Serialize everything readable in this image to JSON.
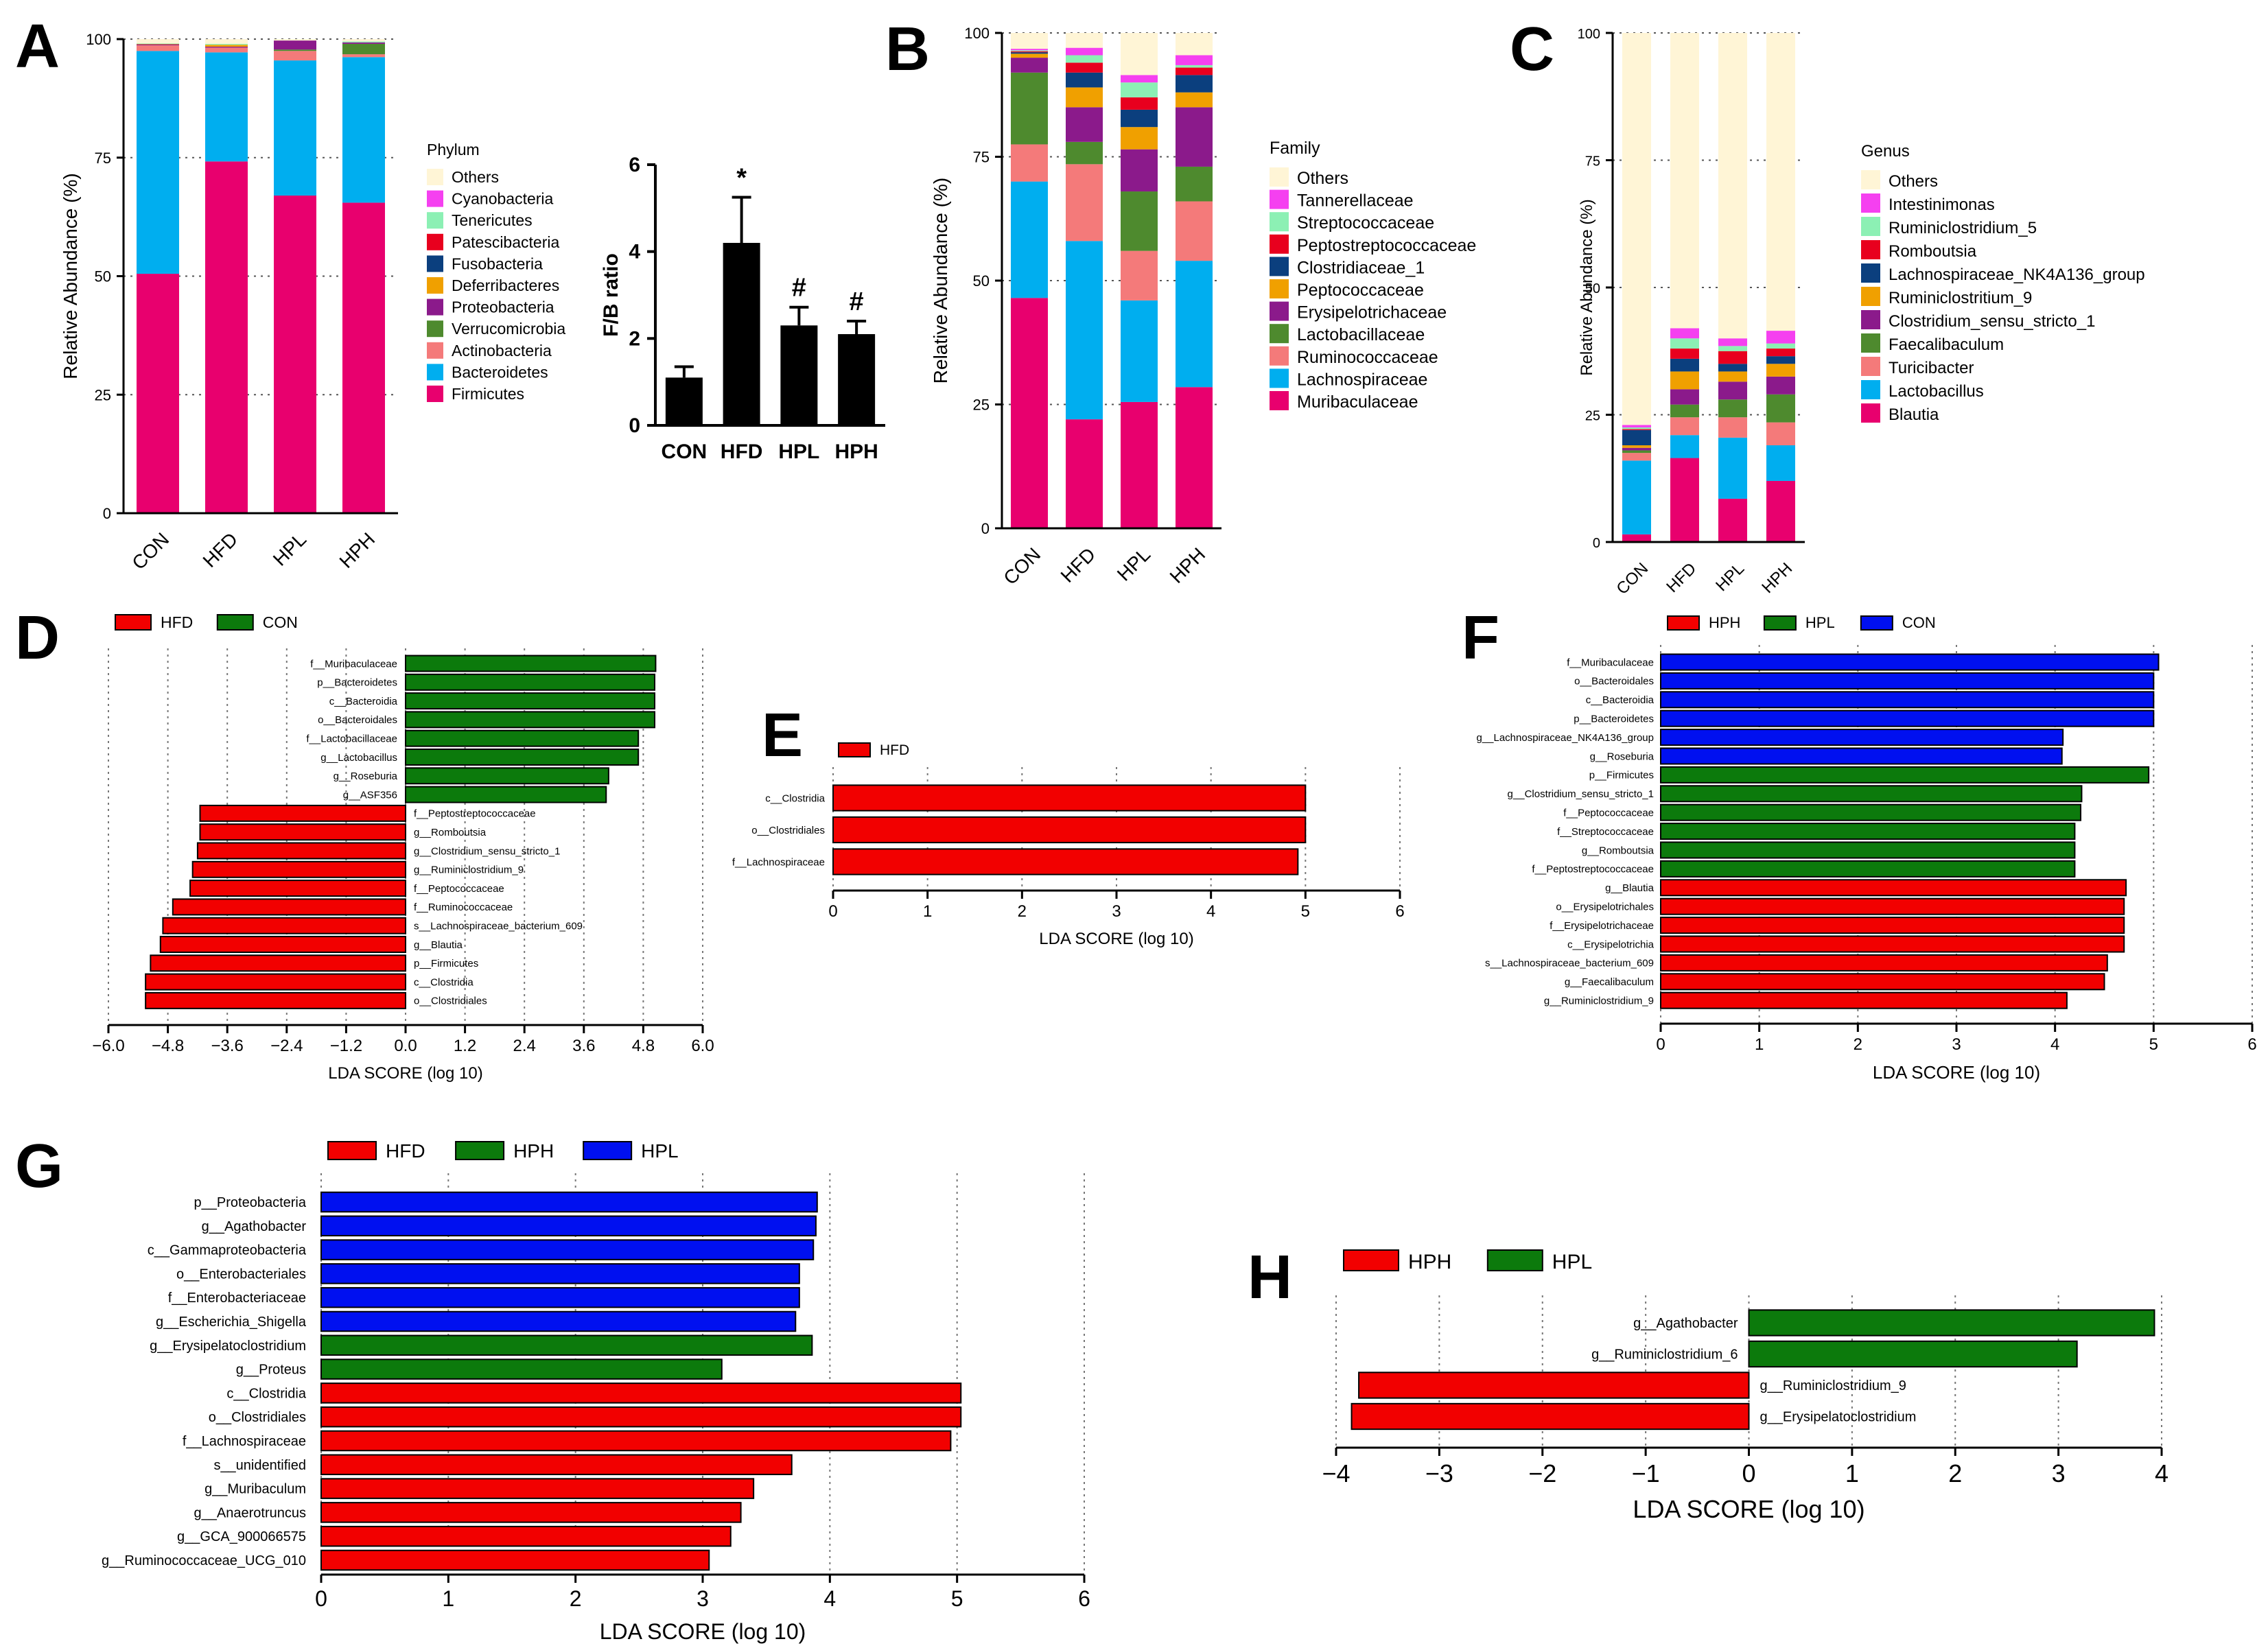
{
  "chart_data": [
    {
      "panel": "A",
      "type": "bar",
      "stacked": true,
      "ylabel": "Relative Abundance (%)",
      "ylim": [
        0,
        100
      ],
      "yticks": [
        0,
        25,
        50,
        75,
        100
      ],
      "categories": [
        "CON",
        "HFD",
        "HPL",
        "HPH"
      ],
      "legend_title": "Phylum",
      "series": [
        {
          "name": "Firmicutes",
          "color": "#E8006E",
          "values": [
            50.5,
            74.2,
            67,
            65.5
          ]
        },
        {
          "name": "Bacteroidetes",
          "color": "#00AEEF",
          "values": [
            47,
            23,
            28.5,
            30.7
          ]
        },
        {
          "name": "Actinobacteria",
          "color": "#F47A7A",
          "values": [
            1.2,
            1,
            2,
            0.6
          ]
        },
        {
          "name": "Verrucomicrobia",
          "color": "#4E8A2E",
          "values": [
            0,
            0,
            0.3,
            2.2
          ]
        },
        {
          "name": "Proteobacteria",
          "color": "#8B1A8B",
          "values": [
            0.2,
            0.2,
            1.9,
            0.3
          ]
        },
        {
          "name": "Deferribacteres",
          "color": "#F0A000",
          "values": [
            0.1,
            0.4,
            0,
            0
          ]
        },
        {
          "name": "Fusobacteria",
          "color": "#0B3F7E",
          "values": [
            0,
            0,
            0,
            0
          ]
        },
        {
          "name": "Patescibacteria",
          "color": "#E8001E",
          "values": [
            0,
            0,
            0,
            0
          ]
        },
        {
          "name": "Tenericutes",
          "color": "#8CF0B4",
          "values": [
            0.1,
            0.2,
            0,
            0.2
          ]
        },
        {
          "name": "Cyanobacteria",
          "color": "#F540F0",
          "values": [
            0,
            0,
            0,
            0
          ]
        },
        {
          "name": "Others",
          "color": "#FFF5D6",
          "values": [
            0.9,
            1,
            0.3,
            0.5
          ]
        }
      ]
    },
    {
      "panel": "A",
      "type": "bar",
      "ylabel": "F/B ratio",
      "ylim": [
        0,
        6
      ],
      "yticks": [
        0,
        2,
        4,
        6
      ],
      "categories": [
        "CON",
        "HFD",
        "HPL",
        "HPH"
      ],
      "values": [
        1.1,
        4.2,
        2.3,
        2.1
      ],
      "errors": [
        0.25,
        1.05,
        0.42,
        0.3
      ],
      "annotations": [
        "",
        "*",
        "#",
        "#"
      ]
    },
    {
      "panel": "B",
      "type": "bar",
      "stacked": true,
      "ylabel": "Relative Abundance (%)",
      "ylim": [
        0,
        100
      ],
      "yticks": [
        0,
        25,
        50,
        75,
        100
      ],
      "categories": [
        "CON",
        "HFD",
        "HPL",
        "HPH"
      ],
      "legend_title": "Family",
      "series": [
        {
          "name": "Muribaculaceae",
          "color": "#E8006E",
          "values": [
            46.5,
            22,
            25.5,
            28.5
          ]
        },
        {
          "name": "Lachnospiraceae",
          "color": "#00AEEF",
          "values": [
            23.5,
            36,
            20.5,
            25.5
          ]
        },
        {
          "name": "Ruminococcaceae",
          "color": "#F47A7A",
          "values": [
            7.5,
            15.5,
            10,
            12
          ]
        },
        {
          "name": "Lactobacillaceae",
          "color": "#4E8A2E",
          "values": [
            14.5,
            4.5,
            12,
            7
          ]
        },
        {
          "name": "Erysipelotrichaceae",
          "color": "#8B1A8B",
          "values": [
            3,
            7,
            8.5,
            12
          ]
        },
        {
          "name": "Peptococcaceae",
          "color": "#F0A000",
          "values": [
            0.8,
            4,
            4.5,
            3
          ]
        },
        {
          "name": "Clostridiaceae_1",
          "color": "#0B3F7E",
          "values": [
            0.3,
            3,
            3.5,
            3.5
          ]
        },
        {
          "name": "Peptostreptococcaceae",
          "color": "#E8001E",
          "values": [
            0.2,
            2,
            2.5,
            1.5
          ]
        },
        {
          "name": "Streptococcaceae",
          "color": "#8CF0B4",
          "values": [
            0.2,
            1.5,
            3,
            0.5
          ]
        },
        {
          "name": "Tannerellaceae",
          "color": "#F540F0",
          "values": [
            0.3,
            1.5,
            1.5,
            2
          ]
        },
        {
          "name": "Others",
          "color": "#FFF5D6",
          "values": [
            3.2,
            3,
            8.5,
            4.5
          ]
        }
      ]
    },
    {
      "panel": "C",
      "type": "bar",
      "stacked": true,
      "ylabel": "Relative Abundance (%)",
      "ylim": [
        0,
        100
      ],
      "yticks": [
        0,
        25,
        50,
        75,
        100
      ],
      "categories": [
        "CON",
        "HFD",
        "HPL",
        "HPH"
      ],
      "legend_title": "Genus",
      "series": [
        {
          "name": "Blautia",
          "color": "#E8006E",
          "values": [
            1.5,
            16.5,
            8.5,
            12
          ]
        },
        {
          "name": "Lactobacillus",
          "color": "#00AEEF",
          "values": [
            14.5,
            4.5,
            12,
            7
          ]
        },
        {
          "name": "Turicibacter",
          "color": "#F47A7A",
          "values": [
            1.5,
            3.5,
            4,
            4.5
          ]
        },
        {
          "name": "Faecalibaculum",
          "color": "#4E8A2E",
          "values": [
            0.5,
            2.5,
            3.5,
            5.5
          ]
        },
        {
          "name": "Clostridium_sensu_stricto_1",
          "color": "#8B1A8B",
          "values": [
            0.5,
            3,
            3.5,
            3.5
          ]
        },
        {
          "name": "Ruminiclostritium_9",
          "color": "#F0A000",
          "values": [
            0.5,
            3.5,
            2,
            2.5
          ]
        },
        {
          "name": "Lachnospiraceae_NK4A136_group",
          "color": "#0B3F7E",
          "values": [
            3,
            2.5,
            1.5,
            1.5
          ]
        },
        {
          "name": "Romboutsia",
          "color": "#E8001E",
          "values": [
            0.2,
            2,
            2.5,
            1.5
          ]
        },
        {
          "name": "Ruminiclostridium_5",
          "color": "#8CF0B4",
          "values": [
            0.3,
            2,
            1,
            1
          ]
        },
        {
          "name": "Intestinimonas",
          "color": "#F540F0",
          "values": [
            0.5,
            2,
            1.5,
            2.5
          ]
        },
        {
          "name": "Others",
          "color": "#FFF5D6",
          "values": [
            77,
            58,
            60,
            58.5
          ]
        }
      ]
    },
    {
      "panel": "D",
      "type": "bar",
      "orientation": "horizontal",
      "xlabel": "LDA SCORE (log 10)",
      "xlim": [
        -6,
        6
      ],
      "xticks": [
        -6,
        -4.8,
        -3.6,
        -2.4,
        -1.2,
        0,
        1.2,
        2.4,
        3.6,
        4.8,
        6
      ],
      "xtick_labels": [
        "−6.0",
        "−4.8",
        "−3.6",
        "−2.4",
        "−1.2",
        "0.0",
        "1.2",
        "2.4",
        "3.6",
        "4.8",
        "6.0"
      ],
      "legend": [
        {
          "name": "HFD",
          "color": "#F20000"
        },
        {
          "name": "CON",
          "color": "#0C7A0C"
        }
      ],
      "bars": [
        {
          "label": "f__Muribaculaceae",
          "value": 5.05,
          "group": "CON"
        },
        {
          "label": "p__Bacteroidetes",
          "value": 5.03,
          "group": "CON"
        },
        {
          "label": "c__Bacteroidia",
          "value": 5.03,
          "group": "CON"
        },
        {
          "label": "o__Bacteroidales",
          "value": 5.03,
          "group": "CON"
        },
        {
          "label": "f__Lactobacillaceae",
          "value": 4.7,
          "group": "CON"
        },
        {
          "label": "g__Lactobacillus",
          "value": 4.7,
          "group": "CON"
        },
        {
          "label": "g__Roseburia",
          "value": 4.1,
          "group": "CON"
        },
        {
          "label": "g__ASF356",
          "value": 4.05,
          "group": "CON"
        },
        {
          "label": "f__Peptostreptococcaceae",
          "value": -4.15,
          "group": "HFD"
        },
        {
          "label": "g__Romboutsia",
          "value": -4.15,
          "group": "HFD"
        },
        {
          "label": "g__Clostridium_sensu_stricto_1",
          "value": -4.2,
          "group": "HFD"
        },
        {
          "label": "g__Ruminiclostridium_9",
          "value": -4.3,
          "group": "HFD"
        },
        {
          "label": "f__Peptococcaceae",
          "value": -4.35,
          "group": "HFD"
        },
        {
          "label": "f__Ruminococcaceae",
          "value": -4.7,
          "group": "HFD"
        },
        {
          "label": "s__Lachnospiraceae_bacterium_609",
          "value": -4.9,
          "group": "HFD"
        },
        {
          "label": "g__Blautia",
          "value": -4.95,
          "group": "HFD"
        },
        {
          "label": "p__Firmicutes",
          "value": -5.15,
          "group": "HFD"
        },
        {
          "label": "c__Clostridia",
          "value": -5.25,
          "group": "HFD"
        },
        {
          "label": "o__Clostridiales",
          "value": -5.25,
          "group": "HFD"
        }
      ]
    },
    {
      "panel": "E",
      "type": "bar",
      "orientation": "horizontal",
      "xlabel": "LDA SCORE (log 10)",
      "xlim": [
        0,
        6
      ],
      "xticks": [
        0,
        1,
        2,
        3,
        4,
        5,
        6
      ],
      "legend": [
        {
          "name": "HFD",
          "color": "#F20000"
        }
      ],
      "bars": [
        {
          "label": "c__Clostridia",
          "value": 5.0,
          "group": "HFD"
        },
        {
          "label": "o__Clostridiales",
          "value": 5.0,
          "group": "HFD"
        },
        {
          "label": "f__Lachnospiraceae",
          "value": 4.92,
          "group": "HFD"
        }
      ]
    },
    {
      "panel": "F",
      "type": "bar",
      "orientation": "horizontal",
      "xlabel": "LDA SCORE (log 10)",
      "xlim": [
        0,
        6
      ],
      "xticks": [
        0,
        1,
        2,
        3,
        4,
        5,
        6
      ],
      "legend": [
        {
          "name": "HPH",
          "color": "#F20000"
        },
        {
          "name": "HPL",
          "color": "#0C7A0C"
        },
        {
          "name": "CON",
          "color": "#0010F0"
        }
      ],
      "bars": [
        {
          "label": "f__Muribaculaceae",
          "value": 5.05,
          "group": "CON"
        },
        {
          "label": "o__Bacteroidales",
          "value": 5.0,
          "group": "CON"
        },
        {
          "label": "c__Bacteroidia",
          "value": 5.0,
          "group": "CON"
        },
        {
          "label": "p__Bacteroidetes",
          "value": 5.0,
          "group": "CON"
        },
        {
          "label": "g__Lachnospiraceae_NK4A136_group",
          "value": 4.08,
          "group": "CON"
        },
        {
          "label": "g__Roseburia",
          "value": 4.07,
          "group": "CON"
        },
        {
          "label": "p__Firmicutes",
          "value": 4.95,
          "group": "HPL"
        },
        {
          "label": "g__Clostridium_sensu_stricto_1",
          "value": 4.27,
          "group": "HPL"
        },
        {
          "label": "f__Peptococcaceae",
          "value": 4.26,
          "group": "HPL"
        },
        {
          "label": "f__Streptococcaceae",
          "value": 4.2,
          "group": "HPL"
        },
        {
          "label": "g__Romboutsia",
          "value": 4.2,
          "group": "HPL"
        },
        {
          "label": "f__Peptostreptococcaceae",
          "value": 4.2,
          "group": "HPL"
        },
        {
          "label": "g__Blautia",
          "value": 4.72,
          "group": "HPH"
        },
        {
          "label": "o__Erysipelotrichales",
          "value": 4.7,
          "group": "HPH"
        },
        {
          "label": "f__Erysipelotrichaceae",
          "value": 4.7,
          "group": "HPH"
        },
        {
          "label": "c__Erysipelotrichia",
          "value": 4.7,
          "group": "HPH"
        },
        {
          "label": "s__Lachnospiraceae_bacterium_609",
          "value": 4.53,
          "group": "HPH"
        },
        {
          "label": "g__Faecalibaculum",
          "value": 4.5,
          "group": "HPH"
        },
        {
          "label": "g__Ruminiclostridium_9",
          "value": 4.12,
          "group": "HPH"
        }
      ]
    },
    {
      "panel": "G",
      "type": "bar",
      "orientation": "horizontal",
      "xlabel": "LDA SCORE (log 10)",
      "xlim": [
        0,
        6
      ],
      "xticks": [
        0,
        1,
        2,
        3,
        4,
        5,
        6
      ],
      "legend": [
        {
          "name": "HFD",
          "color": "#F20000"
        },
        {
          "name": "HPH",
          "color": "#0C7A0C"
        },
        {
          "name": "HPL",
          "color": "#0010F0"
        }
      ],
      "bars": [
        {
          "label": "p__Proteobacteria",
          "value": 3.9,
          "group": "HPL"
        },
        {
          "label": "g__Agathobacter",
          "value": 3.89,
          "group": "HPL"
        },
        {
          "label": "c__Gammaproteobacteria",
          "value": 3.87,
          "group": "HPL"
        },
        {
          "label": "o__Enterobacteriales",
          "value": 3.76,
          "group": "HPL"
        },
        {
          "label": "f__Enterobacteriaceae",
          "value": 3.76,
          "group": "HPL"
        },
        {
          "label": "g__Escherichia_Shigella",
          "value": 3.73,
          "group": "HPL"
        },
        {
          "label": "g__Erysipelatoclostridium",
          "value": 3.86,
          "group": "HPH"
        },
        {
          "label": "g__Proteus",
          "value": 3.15,
          "group": "HPH"
        },
        {
          "label": "c__Clostridia",
          "value": 5.03,
          "group": "HFD"
        },
        {
          "label": "o__Clostridiales",
          "value": 5.03,
          "group": "HFD"
        },
        {
          "label": "f__Lachnospiraceae",
          "value": 4.95,
          "group": "HFD"
        },
        {
          "label": "s__unidentified",
          "value": 3.7,
          "group": "HFD"
        },
        {
          "label": "g__Muribaculum",
          "value": 3.4,
          "group": "HFD"
        },
        {
          "label": "g__Anaerotruncus",
          "value": 3.3,
          "group": "HFD"
        },
        {
          "label": "g__GCA_900066575",
          "value": 3.22,
          "group": "HFD"
        },
        {
          "label": "g__Ruminococcaceae_UCG_010",
          "value": 3.05,
          "group": "HFD"
        }
      ]
    },
    {
      "panel": "H",
      "type": "bar",
      "orientation": "horizontal",
      "xlabel": "LDA SCORE (log 10)",
      "xlim": [
        -4,
        4
      ],
      "xticks": [
        -4,
        -3,
        -2,
        -1,
        0,
        1,
        2,
        3,
        4
      ],
      "xtick_labels": [
        "−4",
        "−3",
        "−2",
        "−1",
        "0",
        "1",
        "2",
        "3",
        "4"
      ],
      "legend": [
        {
          "name": "HPH",
          "color": "#F20000"
        },
        {
          "name": "HPL",
          "color": "#0C7A0C"
        }
      ],
      "bars": [
        {
          "label": "g__Agathobacter",
          "value": 3.93,
          "group": "HPL"
        },
        {
          "label": "g__Ruminiclostridium_6",
          "value": 3.18,
          "group": "HPL"
        },
        {
          "label": "g__Ruminiclostridium_9",
          "value": -3.78,
          "group": "HPH"
        },
        {
          "label": "g__Erysipelatoclostridium",
          "value": -3.85,
          "group": "HPH"
        }
      ]
    }
  ]
}
